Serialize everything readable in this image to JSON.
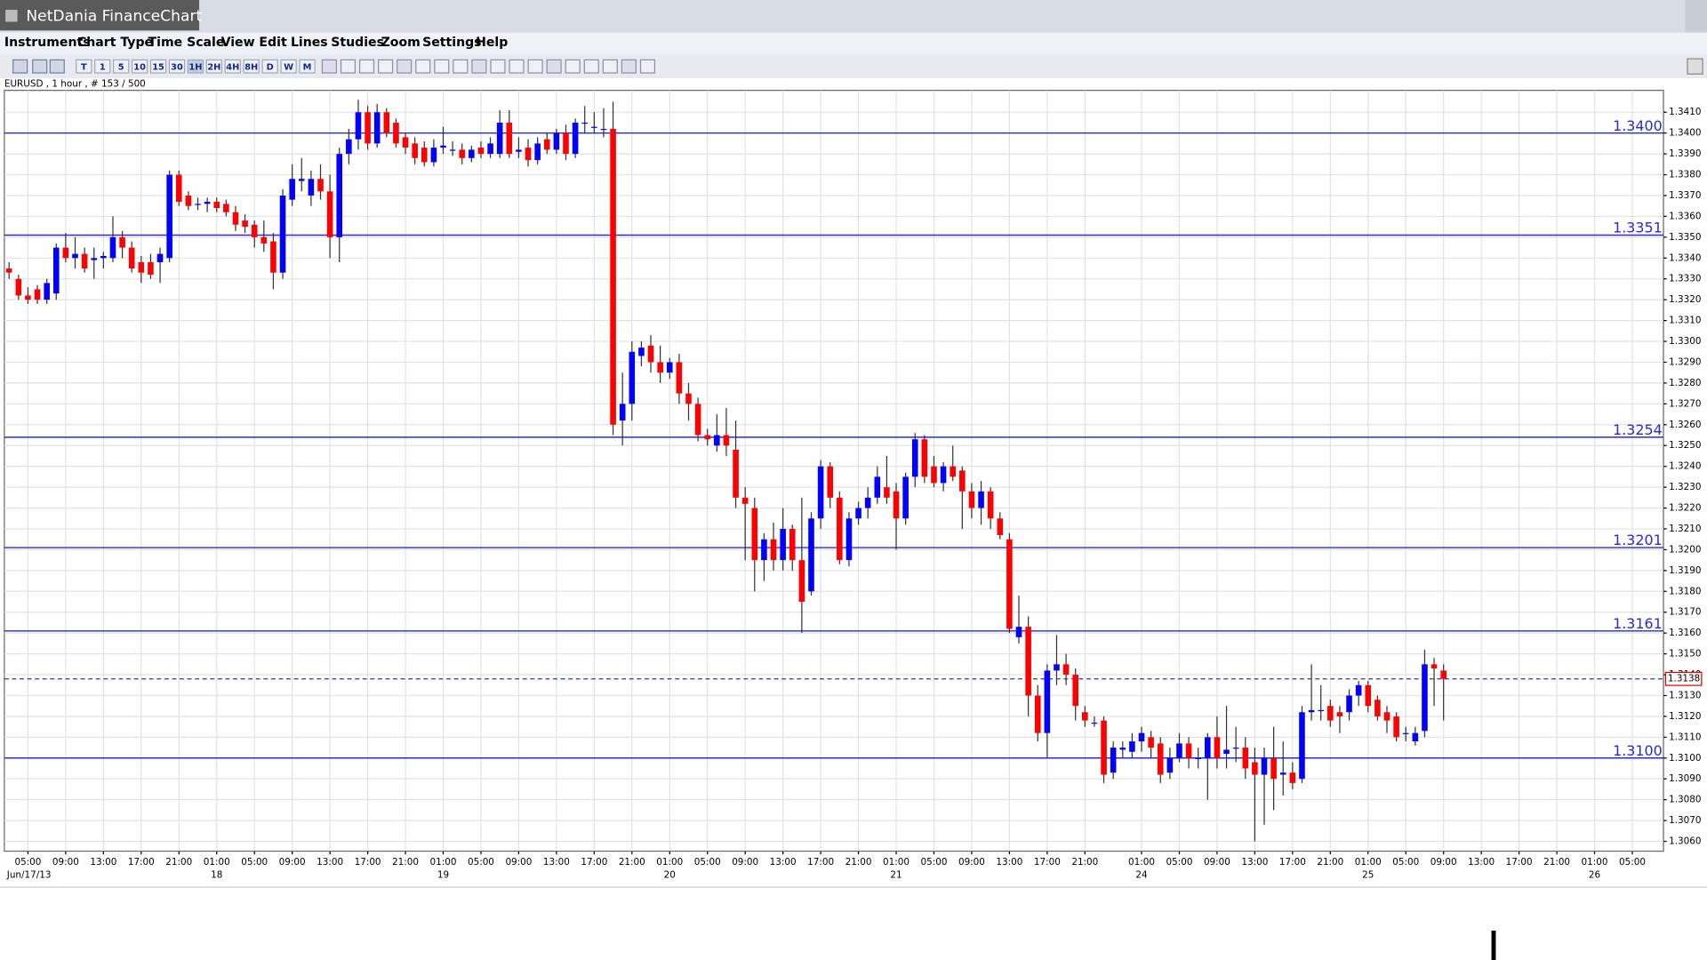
{
  "app": {
    "title": "NetDania FinanceChart",
    "menu": [
      "Instruments",
      "Chart Type",
      "Time Scale",
      "View",
      "Edit",
      "Lines",
      "Studies",
      "Zoom",
      "Settings",
      "Help"
    ],
    "toolbar": [
      "T",
      "1",
      "5",
      "10",
      "15",
      "30",
      "1H",
      "2H",
      "4H",
      "8H",
      "D",
      "W",
      "M"
    ]
  },
  "chart_data": {
    "type": "candlestick",
    "title": "EURUSD , 1 hour , # 153 / 500",
    "up_color": "#0000ff",
    "down_color": "#ff0000",
    "wick_color": "#333333",
    "ohlc": [
      [
        1.3335,
        1.3338,
        1.333,
        1.3333
      ],
      [
        1.333,
        1.3332,
        1.332,
        1.3322
      ],
      [
        1.3322,
        1.3326,
        1.3318,
        1.332
      ],
      [
        1.3325,
        1.3327,
        1.3318,
        1.332
      ],
      [
        1.332,
        1.333,
        1.3318,
        1.3328
      ],
      [
        1.3323,
        1.3347,
        1.332,
        1.3345
      ],
      [
        1.3345,
        1.3352,
        1.3338,
        1.334
      ],
      [
        1.334,
        1.335,
        1.3335,
        1.3342
      ],
      [
        1.3342,
        1.3345,
        1.3333,
        1.3335
      ],
      [
        1.3339,
        1.3345,
        1.333,
        1.334
      ],
      [
        1.334,
        1.3343,
        1.3335,
        1.3341
      ],
      [
        1.334,
        1.336,
        1.3338,
        1.335
      ],
      [
        1.335,
        1.3353,
        1.334,
        1.3345
      ],
      [
        1.3345,
        1.3348,
        1.3333,
        1.3335
      ],
      [
        1.3338,
        1.3341,
        1.3328,
        1.3333
      ],
      [
        1.3338,
        1.3342,
        1.333,
        1.3332
      ],
      [
        1.3338,
        1.3345,
        1.3328,
        1.3342
      ],
      [
        1.334,
        1.3382,
        1.3338,
        1.338
      ],
      [
        1.338,
        1.3382,
        1.3365,
        1.3367
      ],
      [
        1.337,
        1.3372,
        1.3363,
        1.3365
      ],
      [
        1.3366,
        1.3369,
        1.3363,
        1.3366
      ],
      [
        1.3366,
        1.3369,
        1.3362,
        1.3367
      ],
      [
        1.3367,
        1.3369,
        1.3362,
        1.3364
      ],
      [
        1.3366,
        1.3368,
        1.336,
        1.3362
      ],
      [
        1.3362,
        1.3365,
        1.3353,
        1.3356
      ],
      [
        1.3358,
        1.3361,
        1.3352,
        1.3355
      ],
      [
        1.3356,
        1.3358,
        1.3345,
        1.335
      ],
      [
        1.335,
        1.3358,
        1.3343,
        1.3347
      ],
      [
        1.3348,
        1.3352,
        1.3325,
        1.3333
      ],
      [
        1.3333,
        1.3373,
        1.333,
        1.337
      ],
      [
        1.3368,
        1.3385,
        1.3365,
        1.3378
      ],
      [
        1.3377,
        1.3388,
        1.3372,
        1.3378
      ],
      [
        1.337,
        1.3382,
        1.3365,
        1.3378
      ],
      [
        1.3378,
        1.3385,
        1.3368,
        1.3372
      ],
      [
        1.3372,
        1.338,
        1.334,
        1.335
      ],
      [
        1.335,
        1.3393,
        1.3338,
        1.339
      ],
      [
        1.339,
        1.3402,
        1.3385,
        1.3397
      ],
      [
        1.3397,
        1.3416,
        1.3392,
        1.341
      ],
      [
        1.341,
        1.3413,
        1.3392,
        1.3395
      ],
      [
        1.3395,
        1.3414,
        1.3393,
        1.341
      ],
      [
        1.341,
        1.3412,
        1.3398,
        1.34
      ],
      [
        1.3405,
        1.3407,
        1.3393,
        1.3395
      ],
      [
        1.3398,
        1.34,
        1.339,
        1.3393
      ],
      [
        1.3395,
        1.3398,
        1.3385,
        1.3388
      ],
      [
        1.3393,
        1.3396,
        1.3384,
        1.3386
      ],
      [
        1.3386,
        1.3397,
        1.3384,
        1.3393
      ],
      [
        1.3393,
        1.3403,
        1.339,
        1.3394
      ],
      [
        1.3392,
        1.3396,
        1.3389,
        1.3392
      ],
      [
        1.3392,
        1.3395,
        1.3385,
        1.3388
      ],
      [
        1.3388,
        1.3394,
        1.3386,
        1.3392
      ],
      [
        1.3393,
        1.3396,
        1.3388,
        1.339
      ],
      [
        1.339,
        1.3398,
        1.3388,
        1.3395
      ],
      [
        1.339,
        1.3411,
        1.3388,
        1.3405
      ],
      [
        1.3405,
        1.3411,
        1.3388,
        1.339
      ],
      [
        1.3391,
        1.3398,
        1.3388,
        1.3392
      ],
      [
        1.3393,
        1.3397,
        1.3384,
        1.3387
      ],
      [
        1.3387,
        1.3398,
        1.3385,
        1.3395
      ],
      [
        1.3397,
        1.34,
        1.339,
        1.3392
      ],
      [
        1.3392,
        1.3402,
        1.339,
        1.34
      ],
      [
        1.34,
        1.3404,
        1.3387,
        1.339
      ],
      [
        1.339,
        1.3407,
        1.3388,
        1.3405
      ],
      [
        1.3405,
        1.3413,
        1.34,
        1.3405
      ],
      [
        1.3403,
        1.341,
        1.34,
        1.3403
      ],
      [
        1.3402,
        1.3412,
        1.3398,
        1.3402
      ],
      [
        1.3402,
        1.3415,
        1.3255,
        1.326
      ],
      [
        1.3262,
        1.3285,
        1.325,
        1.327
      ],
      [
        1.327,
        1.33,
        1.3262,
        1.3295
      ],
      [
        1.3293,
        1.33,
        1.3288,
        1.3297
      ],
      [
        1.3298,
        1.3303,
        1.3285,
        1.329
      ],
      [
        1.329,
        1.3298,
        1.328,
        1.3285
      ],
      [
        1.3285,
        1.3292,
        1.3282,
        1.329
      ],
      [
        1.329,
        1.3294,
        1.327,
        1.3275
      ],
      [
        1.3275,
        1.328,
        1.3262,
        1.327
      ],
      [
        1.327,
        1.3273,
        1.3252,
        1.3255
      ],
      [
        1.3255,
        1.3258,
        1.325,
        1.3253
      ],
      [
        1.325,
        1.3265,
        1.3247,
        1.3255
      ],
      [
        1.3255,
        1.3268,
        1.3245,
        1.325
      ],
      [
        1.3248,
        1.3262,
        1.322,
        1.3225
      ],
      [
        1.3225,
        1.323,
        1.3195,
        1.3222
      ],
      [
        1.322,
        1.3225,
        1.318,
        1.3195
      ],
      [
        1.3195,
        1.3208,
        1.3185,
        1.3205
      ],
      [
        1.3205,
        1.3213,
        1.319,
        1.3195
      ],
      [
        1.3195,
        1.322,
        1.319,
        1.321
      ],
      [
        1.321,
        1.3212,
        1.319,
        1.3195
      ],
      [
        1.3195,
        1.3225,
        1.316,
        1.3175
      ],
      [
        1.318,
        1.3218,
        1.3178,
        1.3215
      ],
      [
        1.3215,
        1.3243,
        1.321,
        1.324
      ],
      [
        1.324,
        1.3242,
        1.322,
        1.3225
      ],
      [
        1.3225,
        1.3228,
        1.3193,
        1.3195
      ],
      [
        1.3195,
        1.3218,
        1.3192,
        1.3215
      ],
      [
        1.3215,
        1.3223,
        1.3212,
        1.322
      ],
      [
        1.322,
        1.323,
        1.3215,
        1.3225
      ],
      [
        1.3225,
        1.324,
        1.3222,
        1.3235
      ],
      [
        1.323,
        1.3245,
        1.3222,
        1.3225
      ],
      [
        1.3228,
        1.3232,
        1.32,
        1.3215
      ],
      [
        1.3215,
        1.3237,
        1.3212,
        1.3235
      ],
      [
        1.3235,
        1.3256,
        1.323,
        1.3253
      ],
      [
        1.3253,
        1.3255,
        1.3232,
        1.3235
      ],
      [
        1.324,
        1.3245,
        1.323,
        1.3232
      ],
      [
        1.3232,
        1.3242,
        1.3228,
        1.324
      ],
      [
        1.324,
        1.325,
        1.3233,
        1.3235
      ],
      [
        1.3238,
        1.324,
        1.321,
        1.3228
      ],
      [
        1.3228,
        1.3232,
        1.3215,
        1.322
      ],
      [
        1.322,
        1.3233,
        1.3212,
        1.3228
      ],
      [
        1.3228,
        1.323,
        1.321,
        1.3215
      ],
      [
        1.3215,
        1.3218,
        1.3205,
        1.3207
      ],
      [
        1.3205,
        1.3208,
        1.316,
        1.3162
      ],
      [
        1.3158,
        1.3178,
        1.3155,
        1.3163
      ],
      [
        1.3163,
        1.3168,
        1.312,
        1.313
      ],
      [
        1.313,
        1.3135,
        1.3108,
        1.3112
      ],
      [
        1.3112,
        1.3145,
        1.31,
        1.3142
      ],
      [
        1.3142,
        1.3159,
        1.3135,
        1.3145
      ],
      [
        1.3145,
        1.315,
        1.3135,
        1.314
      ],
      [
        1.314,
        1.3143,
        1.3118,
        1.3125
      ],
      [
        1.3122,
        1.3125,
        1.3115,
        1.3118
      ],
      [
        1.3117,
        1.312,
        1.3115,
        1.3117
      ],
      [
        1.3118,
        1.312,
        1.3088,
        1.3092
      ],
      [
        1.3093,
        1.3108,
        1.309,
        1.3105
      ],
      [
        1.3104,
        1.3108,
        1.31,
        1.3105
      ],
      [
        1.3103,
        1.3112,
        1.31,
        1.3108
      ],
      [
        1.3108,
        1.3115,
        1.3103,
        1.3112
      ],
      [
        1.311,
        1.3113,
        1.31,
        1.3105
      ],
      [
        1.3107,
        1.311,
        1.3088,
        1.3092
      ],
      [
        1.3093,
        1.3105,
        1.309,
        1.31
      ],
      [
        1.31,
        1.3112,
        1.3098,
        1.3107
      ],
      [
        1.3107,
        1.311,
        1.3095,
        1.31
      ],
      [
        1.31,
        1.3105,
        1.3095,
        1.31
      ],
      [
        1.31,
        1.3112,
        1.308,
        1.311
      ],
      [
        1.311,
        1.312,
        1.3095,
        1.31
      ],
      [
        1.3102,
        1.3125,
        1.3095,
        1.3104
      ],
      [
        1.3105,
        1.3115,
        1.3098,
        1.3105
      ],
      [
        1.3105,
        1.311,
        1.309,
        1.3095
      ],
      [
        1.3098,
        1.3105,
        1.306,
        1.3092
      ],
      [
        1.3092,
        1.3105,
        1.3068,
        1.31
      ],
      [
        1.31,
        1.3115,
        1.3075,
        1.309
      ],
      [
        1.3092,
        1.3108,
        1.3082,
        1.3093
      ],
      [
        1.3093,
        1.3098,
        1.3085,
        1.3088
      ],
      [
        1.309,
        1.3125,
        1.3088,
        1.3122
      ],
      [
        1.3122,
        1.3145,
        1.3118,
        1.3123
      ],
      [
        1.3123,
        1.3135,
        1.3118,
        1.3123
      ],
      [
        1.3125,
        1.3128,
        1.3115,
        1.3118
      ],
      [
        1.3122,
        1.3125,
        1.3112,
        1.312
      ],
      [
        1.3122,
        1.3133,
        1.3118,
        1.313
      ],
      [
        1.313,
        1.3137,
        1.3125,
        1.3135
      ],
      [
        1.3135,
        1.3137,
        1.3122,
        1.3125
      ],
      [
        1.3128,
        1.313,
        1.3118,
        1.312
      ],
      [
        1.3122,
        1.3125,
        1.3112,
        1.3118
      ],
      [
        1.312,
        1.3122,
        1.3108,
        1.311
      ],
      [
        1.3112,
        1.3115,
        1.3108,
        1.3112
      ],
      [
        1.3108,
        1.3115,
        1.3106,
        1.3112
      ],
      [
        1.3113,
        1.3152,
        1.311,
        1.3145
      ],
      [
        1.3145,
        1.3148,
        1.3125,
        1.3143
      ],
      [
        1.3142,
        1.3145,
        1.3118,
        1.3138
      ]
    ],
    "xlim": [
      -0.5,
      175.3
    ],
    "xticks": [
      {
        "value": 2,
        "label": "05:00"
      },
      {
        "value": 6,
        "label": "09:00"
      },
      {
        "value": 10,
        "label": "13:00"
      },
      {
        "value": 14,
        "label": "17:00"
      },
      {
        "value": 18,
        "label": "21:00"
      },
      {
        "value": 22,
        "label": "01:00"
      },
      {
        "value": 26,
        "label": "05:00"
      },
      {
        "value": 30,
        "label": "09:00"
      },
      {
        "value": 34,
        "label": "13:00"
      },
      {
        "value": 38,
        "label": "17:00"
      },
      {
        "value": 42,
        "label": "21:00"
      },
      {
        "value": 46,
        "label": "01:00"
      },
      {
        "value": 50,
        "label": "05:00"
      },
      {
        "value": 54,
        "label": "09:00"
      },
      {
        "value": 58,
        "label": "13:00"
      },
      {
        "value": 62,
        "label": "17:00"
      },
      {
        "value": 66,
        "label": "21:00"
      },
      {
        "value": 70,
        "label": "01:00"
      },
      {
        "value": 74,
        "label": "05:00"
      },
      {
        "value": 78,
        "label": "09:00"
      },
      {
        "value": 82,
        "label": "13:00"
      },
      {
        "value": 86,
        "label": "17:00"
      },
      {
        "value": 90,
        "label": "21:00"
      },
      {
        "value": 94,
        "label": "01:00"
      },
      {
        "value": 98,
        "label": "05:00"
      },
      {
        "value": 102,
        "label": "09:00"
      },
      {
        "value": 106,
        "label": "13:00"
      },
      {
        "value": 110,
        "label": "17:00"
      },
      {
        "value": 114,
        "label": "21:00"
      },
      {
        "value": 120,
        "label": "01:00"
      },
      {
        "value": 124,
        "label": "05:00"
      },
      {
        "value": 128,
        "label": "09:00"
      },
      {
        "value": 132,
        "label": "13:00"
      },
      {
        "value": 136,
        "label": "17:00"
      },
      {
        "value": 140,
        "label": "21:00"
      },
      {
        "value": 144,
        "label": "01:00"
      },
      {
        "value": 148,
        "label": "05:00"
      },
      {
        "value": 152,
        "label": "09:00"
      },
      {
        "value": 156,
        "label": "13:00"
      },
      {
        "value": 160,
        "label": "17:00"
      },
      {
        "value": 164,
        "label": "21:00"
      },
      {
        "value": 168,
        "label": "01:00"
      },
      {
        "value": 172,
        "label": "05:00"
      }
    ],
    "date_labels": [
      {
        "value": 0,
        "label": "Jun/17/13"
      },
      {
        "value": 22,
        "label": "18"
      },
      {
        "value": 46,
        "label": "19"
      },
      {
        "value": 70,
        "label": "20"
      },
      {
        "value": 94,
        "label": "21"
      },
      {
        "value": 120,
        "label": "24"
      },
      {
        "value": 144,
        "label": "25"
      },
      {
        "value": 168,
        "label": "26"
      }
    ],
    "ylim": [
      1.30553,
      1.34205
    ],
    "yticks": [
      {
        "value": 1.306,
        "label": "1.3060"
      },
      {
        "value": 1.307,
        "label": "1.3070"
      },
      {
        "value": 1.308,
        "label": "1.3080"
      },
      {
        "value": 1.309,
        "label": "1.3090"
      },
      {
        "value": 1.31,
        "label": "1.3100"
      },
      {
        "value": 1.311,
        "label": "1.3110"
      },
      {
        "value": 1.312,
        "label": "1.3120"
      },
      {
        "value": 1.313,
        "label": "1.3130"
      },
      {
        "value": 1.314,
        "label": "1.3140"
      },
      {
        "value": 1.315,
        "label": "1.3150"
      },
      {
        "value": 1.316,
        "label": "1.3160"
      },
      {
        "value": 1.317,
        "label": "1.3170"
      },
      {
        "value": 1.318,
        "label": "1.3180"
      },
      {
        "value": 1.319,
        "label": "1.3190"
      },
      {
        "value": 1.32,
        "label": "1.3200"
      },
      {
        "value": 1.321,
        "label": "1.3210"
      },
      {
        "value": 1.322,
        "label": "1.3220"
      },
      {
        "value": 1.323,
        "label": "1.3230"
      },
      {
        "value": 1.324,
        "label": "1.3240"
      },
      {
        "value": 1.325,
        "label": "1.3250"
      },
      {
        "value": 1.326,
        "label": "1.3260"
      },
      {
        "value": 1.327,
        "label": "1.3270"
      },
      {
        "value": 1.328,
        "label": "1.3280"
      },
      {
        "value": 1.329,
        "label": "1.3290"
      },
      {
        "value": 1.33,
        "label": "1.3300"
      },
      {
        "value": 1.331,
        "label": "1.3310"
      },
      {
        "value": 1.332,
        "label": "1.3320"
      },
      {
        "value": 1.333,
        "label": "1.3330"
      },
      {
        "value": 1.334,
        "label": "1.3340"
      },
      {
        "value": 1.335,
        "label": "1.3350"
      },
      {
        "value": 1.336,
        "label": "1.3360"
      },
      {
        "value": 1.337,
        "label": "1.3370"
      },
      {
        "value": 1.338,
        "label": "1.3380"
      },
      {
        "value": 1.339,
        "label": "1.3390"
      },
      {
        "value": 1.34,
        "label": "1.3400"
      },
      {
        "value": 1.341,
        "label": "1.3410"
      }
    ],
    "grid": true,
    "levels": [
      {
        "value": 1.34,
        "label": "1.3400"
      },
      1.3351,
      1.3254,
      1.3201,
      1.3161,
      {
        "value": 1.31,
        "label": "1.3100"
      }
    ],
    "level_color": "#2a2ad0",
    "last_price": 1.3138,
    "last_price_color": "#e00000"
  }
}
